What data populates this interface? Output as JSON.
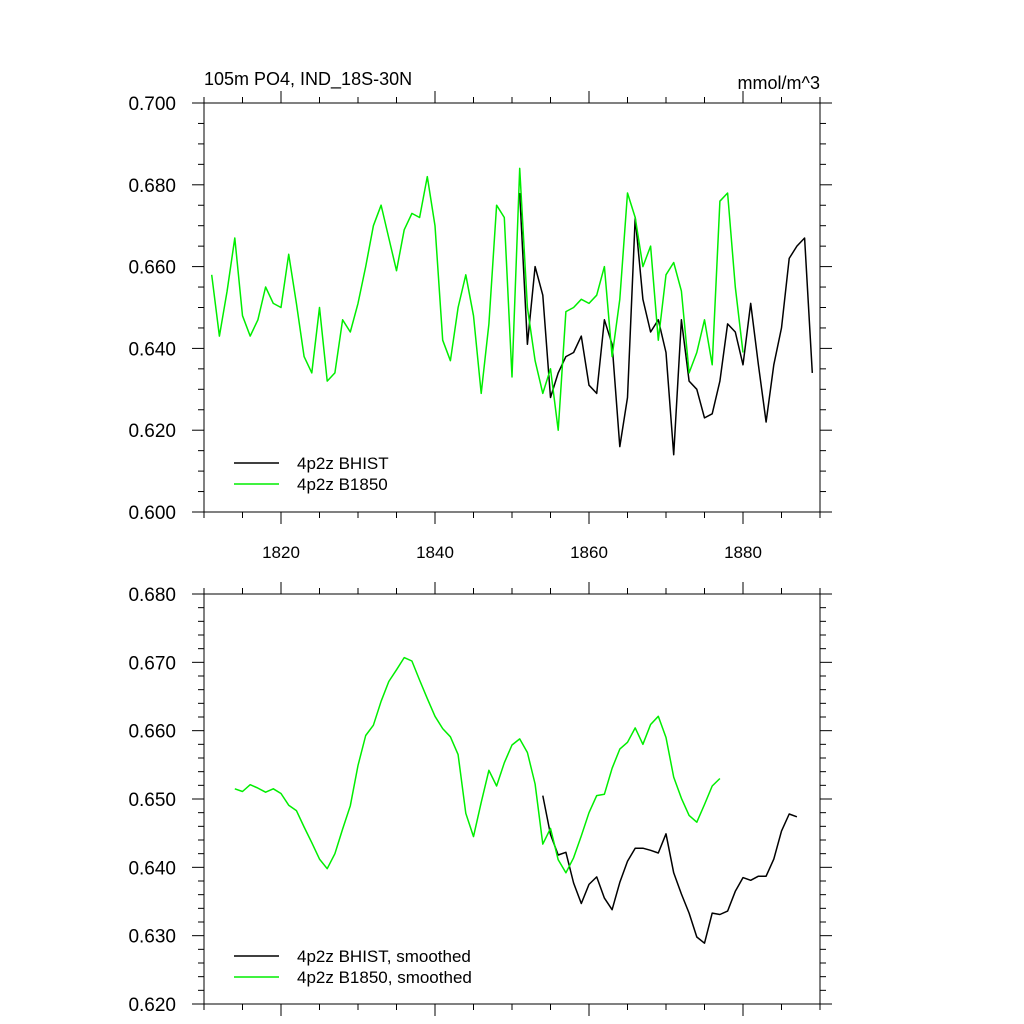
{
  "colors": {
    "bhist": "#000000",
    "b1850": "#00ee00",
    "axis": "#000000"
  },
  "chart_data": [
    {
      "type": "line",
      "title": "105m PO4, IND_18S-30N",
      "units": "mmol/m^3",
      "xlim": [
        1810,
        1890
      ],
      "ylim": [
        0.6,
        0.7
      ],
      "xticks": [
        1820,
        1840,
        1860,
        1880
      ],
      "xtick_labels": [
        "1820",
        "1840",
        "1860",
        "1880"
      ],
      "yticks": [
        0.6,
        0.62,
        0.64,
        0.66,
        0.68,
        0.7
      ],
      "ytick_labels": [
        "0.600",
        "0.620",
        "0.640",
        "0.660",
        "0.680",
        "0.700"
      ],
      "legend": "bottom-left",
      "series": [
        {
          "name": "4p2z BHIST",
          "color_key": "bhist",
          "x": [
            1851,
            1852,
            1853,
            1854,
            1855,
            1856,
            1857,
            1858,
            1859,
            1860,
            1861,
            1862,
            1863,
            1864,
            1865,
            1866,
            1867,
            1868,
            1869,
            1870,
            1871,
            1872,
            1873,
            1874,
            1875,
            1876,
            1877,
            1878,
            1879,
            1880,
            1881,
            1882,
            1883,
            1884,
            1885,
            1886,
            1887,
            1888,
            1889
          ],
          "y": [
            0.678,
            0.641,
            0.66,
            0.653,
            0.628,
            0.634,
            0.638,
            0.639,
            0.643,
            0.631,
            0.629,
            0.647,
            0.641,
            0.616,
            0.628,
            0.672,
            0.652,
            0.644,
            0.647,
            0.639,
            0.614,
            0.647,
            0.632,
            0.63,
            0.623,
            0.624,
            0.632,
            0.646,
            0.644,
            0.636,
            0.651,
            0.636,
            0.622,
            0.636,
            0.645,
            0.662,
            0.665,
            0.667,
            0.634
          ]
        },
        {
          "name": "4p2z B1850",
          "color_key": "b1850",
          "x": [
            1811,
            1812,
            1813,
            1814,
            1815,
            1816,
            1817,
            1818,
            1819,
            1820,
            1821,
            1822,
            1823,
            1824,
            1825,
            1826,
            1827,
            1828,
            1829,
            1830,
            1831,
            1832,
            1833,
            1834,
            1835,
            1836,
            1837,
            1838,
            1839,
            1840,
            1841,
            1842,
            1843,
            1844,
            1845,
            1846,
            1847,
            1848,
            1849,
            1850,
            1851,
            1852,
            1853,
            1854,
            1855,
            1856,
            1857,
            1858,
            1859,
            1860,
            1861,
            1862,
            1863,
            1864,
            1865,
            1866,
            1867,
            1868,
            1869,
            1870,
            1871,
            1872,
            1873,
            1874,
            1875,
            1876,
            1877,
            1878,
            1879,
            1880
          ],
          "y": [
            0.658,
            0.643,
            0.654,
            0.667,
            0.648,
            0.643,
            0.647,
            0.655,
            0.651,
            0.65,
            0.663,
            0.651,
            0.638,
            0.634,
            0.65,
            0.632,
            0.634,
            0.647,
            0.644,
            0.651,
            0.66,
            0.67,
            0.675,
            0.667,
            0.659,
            0.669,
            0.673,
            0.672,
            0.682,
            0.67,
            0.642,
            0.637,
            0.65,
            0.658,
            0.648,
            0.629,
            0.646,
            0.675,
            0.672,
            0.633,
            0.684,
            0.65,
            0.637,
            0.629,
            0.635,
            0.62,
            0.649,
            0.65,
            0.652,
            0.651,
            0.653,
            0.66,
            0.638,
            0.652,
            0.678,
            0.672,
            0.66,
            0.665,
            0.642,
            0.658,
            0.661,
            0.654,
            0.634,
            0.639,
            0.647,
            0.636,
            0.676,
            0.678,
            0.655,
            0.639
          ]
        }
      ]
    },
    {
      "type": "line",
      "xlim": [
        1810,
        1890
      ],
      "ylim": [
        0.62,
        0.68
      ],
      "xticks": [
        1820,
        1840,
        1860,
        1880
      ],
      "yticks": [
        0.62,
        0.63,
        0.64,
        0.65,
        0.66,
        0.67,
        0.68
      ],
      "ytick_labels": [
        "0.620",
        "0.630",
        "0.640",
        "0.650",
        "0.660",
        "0.670",
        "0.680"
      ],
      "legend": "bottom-left",
      "series": [
        {
          "name": "4p2z BHIST, smoothed",
          "color_key": "bhist",
          "x": [
            1854,
            1855,
            1856,
            1857,
            1858,
            1859,
            1860,
            1861,
            1862,
            1863,
            1864,
            1865,
            1866,
            1867,
            1868,
            1869,
            1870,
            1871,
            1872,
            1873,
            1874,
            1875,
            1876,
            1877,
            1878,
            1879,
            1880,
            1881,
            1882,
            1883,
            1884,
            1885,
            1886,
            1887
          ],
          "y": [
            0.6505,
            0.6448,
            0.6418,
            0.6422,
            0.6377,
            0.6347,
            0.6375,
            0.6386,
            0.6355,
            0.6338,
            0.6378,
            0.6409,
            0.6428,
            0.6428,
            0.6425,
            0.6421,
            0.6449,
            0.6392,
            0.6361,
            0.6333,
            0.6298,
            0.6289,
            0.6333,
            0.6331,
            0.6336,
            0.6365,
            0.6385,
            0.6381,
            0.6387,
            0.6387,
            0.6412,
            0.6453,
            0.6478,
            0.6474
          ]
        },
        {
          "name": "4p2z B1850, smoothed",
          "color_key": "b1850",
          "x": [
            1814,
            1815,
            1816,
            1817,
            1818,
            1819,
            1820,
            1821,
            1822,
            1823,
            1824,
            1825,
            1826,
            1827,
            1828,
            1829,
            1830,
            1831,
            1832,
            1833,
            1834,
            1835,
            1836,
            1837,
            1838,
            1839,
            1840,
            1841,
            1842,
            1843,
            1844,
            1845,
            1846,
            1847,
            1848,
            1849,
            1850,
            1851,
            1852,
            1853,
            1854,
            1855,
            1856,
            1857,
            1858,
            1859,
            1860,
            1861,
            1862,
            1863,
            1864,
            1865,
            1866,
            1867,
            1868,
            1869,
            1870,
            1871,
            1872,
            1873,
            1874,
            1875,
            1876,
            1877
          ],
          "y": [
            0.6515,
            0.6511,
            0.6521,
            0.6516,
            0.651,
            0.6515,
            0.6508,
            0.6491,
            0.6483,
            0.6459,
            0.6436,
            0.6412,
            0.6398,
            0.642,
            0.6456,
            0.649,
            0.6549,
            0.6593,
            0.6608,
            0.6643,
            0.6672,
            0.6689,
            0.6707,
            0.6702,
            0.6674,
            0.6647,
            0.6621,
            0.6603,
            0.6591,
            0.6565,
            0.6479,
            0.6445,
            0.6495,
            0.6542,
            0.6519,
            0.6553,
            0.6579,
            0.6588,
            0.6568,
            0.6522,
            0.6434,
            0.6457,
            0.6411,
            0.6392,
            0.6414,
            0.6446,
            0.648,
            0.6505,
            0.6507,
            0.6545,
            0.6573,
            0.6583,
            0.6604,
            0.658,
            0.6609,
            0.6621,
            0.659,
            0.6532,
            0.6501,
            0.6476,
            0.6466,
            0.6492,
            0.6519,
            0.653
          ]
        }
      ]
    }
  ]
}
